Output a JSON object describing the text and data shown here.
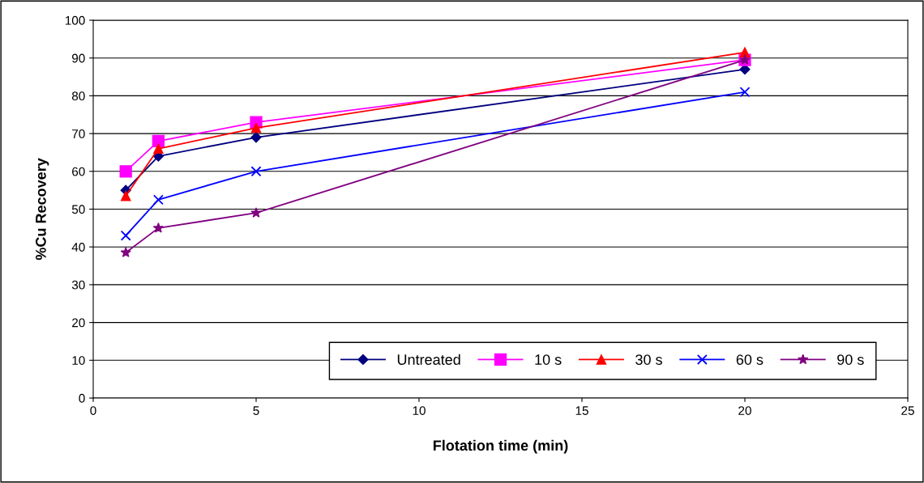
{
  "chart_data": {
    "type": "line",
    "xlabel": "Flotation time (min)",
    "ylabel": "%Cu Recovery",
    "x": [
      1,
      2,
      5,
      20
    ],
    "series": [
      {
        "name": "Untreated",
        "color": "#000080",
        "marker": "diamond",
        "values": [
          55,
          64,
          69,
          87
        ]
      },
      {
        "name": "10 s",
        "color": "#ff00ff",
        "marker": "square",
        "values": [
          60,
          68,
          73,
          89.5
        ]
      },
      {
        "name": "30 s",
        "color": "#ff0000",
        "marker": "triangle",
        "values": [
          53.5,
          66,
          71.5,
          91.5
        ]
      },
      {
        "name": "60 s",
        "color": "#0000ff",
        "marker": "cross",
        "values": [
          43,
          52.5,
          60,
          81
        ]
      },
      {
        "name": "90 s",
        "color": "#800080",
        "marker": "star",
        "values": [
          38.5,
          45,
          49,
          89.5
        ]
      }
    ],
    "xlim": [
      0,
      25
    ],
    "xticks": [
      0,
      5,
      10,
      15,
      20,
      25
    ],
    "ylim": [
      0,
      100
    ],
    "yticks": [
      0,
      10,
      20,
      30,
      40,
      50,
      60,
      70,
      80,
      90,
      100
    ],
    "grid": "y",
    "legend": "bottom right",
    "line_style": "solid"
  }
}
